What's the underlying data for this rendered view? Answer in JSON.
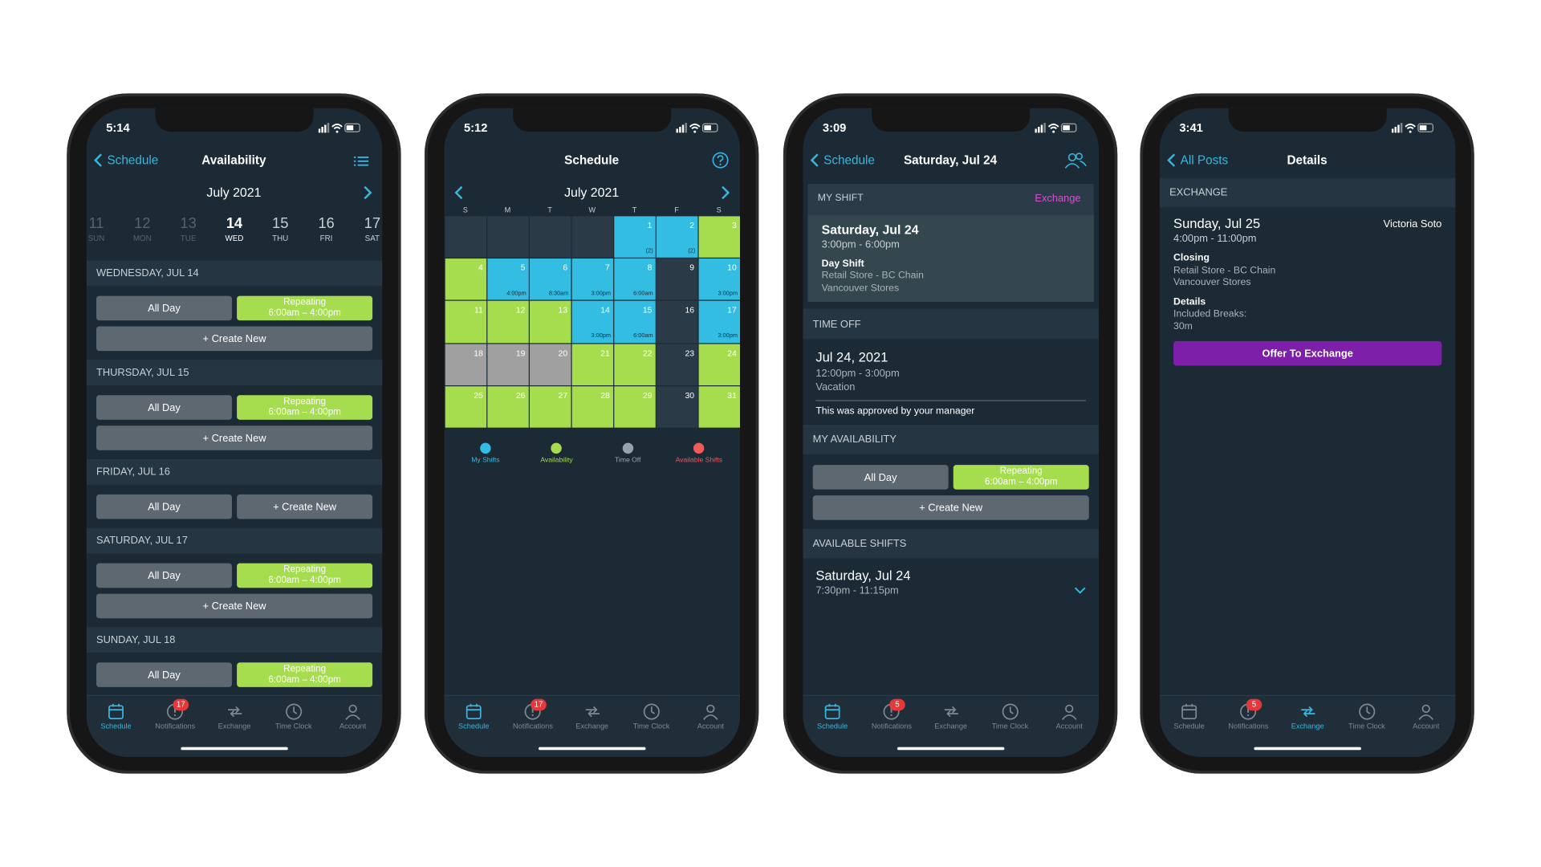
{
  "screens": [
    {
      "status_time": "5:14",
      "back": "Schedule",
      "title": "Availability",
      "month": "July 2021",
      "week": [
        {
          "day": 11,
          "label": "SUN"
        },
        {
          "day": 12,
          "label": "MON"
        },
        {
          "day": 13,
          "label": "TUE"
        },
        {
          "day": 14,
          "label": "WED"
        },
        {
          "day": 15,
          "label": "THU"
        },
        {
          "day": 16,
          "label": "FRI"
        },
        {
          "day": 17,
          "label": "SAT"
        }
      ],
      "sections": [
        {
          "header": "WEDNESDAY, JUL 14",
          "rows": [
            [
              "All Day",
              {
                "title": "Repeating",
                "time": "6:00am – 4:00pm"
              }
            ],
            [
              "+ Create New"
            ]
          ]
        },
        {
          "header": "THURSDAY, JUL 15",
          "rows": [
            [
              "All Day",
              {
                "title": "Repeating",
                "time": "6:00am – 4:00pm"
              }
            ],
            [
              "+ Create New"
            ]
          ]
        },
        {
          "header": "FRIDAY, JUL 16",
          "rows": [
            [
              "All Day",
              "+ Create New"
            ]
          ]
        },
        {
          "header": "SATURDAY, JUL 17",
          "rows": [
            [
              "All Day",
              {
                "title": "Repeating",
                "time": "6:00am – 4:00pm"
              }
            ],
            [
              "+ Create New"
            ]
          ]
        },
        {
          "header": "SUNDAY, JUL 18",
          "rows": [
            [
              "All Day",
              {
                "title": "Repeating",
                "time": "6:00am – 4:00pm"
              }
            ]
          ]
        }
      ],
      "tabs": [
        "Schedule",
        "Notifications",
        "Exchange",
        "Time Clock",
        "Account"
      ],
      "badge": 17,
      "active_tab": 0
    },
    {
      "status_time": "5:12",
      "title": "Schedule",
      "month": "July 2021",
      "weekdays": [
        "S",
        "M",
        "T",
        "W",
        "T",
        "F",
        "S"
      ],
      "calendar": [
        [
          {
            "day": null,
            "color": "#2a3a46"
          },
          {
            "day": null,
            "color": "#2a3a46"
          },
          {
            "day": null,
            "color": "#2a3a46"
          },
          {
            "day": null,
            "color": "#2a3a46"
          },
          {
            "day": 1,
            "note": "(2)",
            "color": "#33bde3"
          },
          {
            "day": 2,
            "note": "(2)",
            "color": "#33bde3"
          },
          {
            "day": 3,
            "color": "#a6dd4f"
          }
        ],
        [
          {
            "day": 4,
            "color": "#a6dd4f"
          },
          {
            "day": 5,
            "note": "4:00pm",
            "color": "#33bde3"
          },
          {
            "day": 6,
            "note": "8:30am",
            "color": "#33bde3"
          },
          {
            "day": 7,
            "note": "3:00pm",
            "color": "#33bde3"
          },
          {
            "day": 8,
            "note": "6:00am",
            "color": "#33bde3"
          },
          {
            "day": 9,
            "color": "#2a3a46"
          },
          {
            "day": 10,
            "note": "3:00pm",
            "color": "#33bde3"
          }
        ],
        [
          {
            "day": 11,
            "color": "#a6dd4f"
          },
          {
            "day": 12,
            "color": "#a6dd4f"
          },
          {
            "day": 13,
            "color": "#a6dd4f"
          },
          {
            "day": 14,
            "note": "3:00pm",
            "color": "#33bde3"
          },
          {
            "day": 15,
            "note": "6:00am",
            "color": "#33bde3"
          },
          {
            "day": 16,
            "color": "#2a3a46"
          },
          {
            "day": 17,
            "note": "3:00pm",
            "color": "#33bde3"
          }
        ],
        [
          {
            "day": 18,
            "color": "#a0a0a0"
          },
          {
            "day": 19,
            "color": "#a0a0a0"
          },
          {
            "day": 20,
            "color": "#a0a0a0"
          },
          {
            "day": 21,
            "color": "#a6dd4f"
          },
          {
            "day": 22,
            "color": "#a6dd4f"
          },
          {
            "day": 23,
            "color": "#2a3a46"
          },
          {
            "day": 24,
            "color": "#a6dd4f"
          }
        ],
        [
          {
            "day": 25,
            "color": "#a6dd4f"
          },
          {
            "day": 26,
            "color": "#a6dd4f"
          },
          {
            "day": 27,
            "color": "#a6dd4f"
          },
          {
            "day": 28,
            "color": "#a6dd4f"
          },
          {
            "day": 29,
            "color": "#a6dd4f"
          },
          {
            "day": 30,
            "color": "#2a3a46"
          },
          {
            "day": 31,
            "color": "#a6dd4f"
          }
        ]
      ],
      "legend": [
        {
          "label": "My Shifts",
          "color": "#33bde3"
        },
        {
          "label": "Availability",
          "color": "#a6dd4f"
        },
        {
          "label": "Time Off",
          "color": "#9aa3aa"
        },
        {
          "label": "Available Shifts",
          "color": "#ef5a5a"
        }
      ],
      "tabs": [
        "Schedule",
        "Notifications",
        "Exchange",
        "Time Clock",
        "Account"
      ],
      "badge": 17,
      "active_tab": 0
    },
    {
      "status_time": "3:09",
      "back": "Schedule",
      "title": "Saturday, Jul 24",
      "my_shift": {
        "header": "MY SHIFT",
        "action": "Exchange",
        "date": "Saturday, Jul 24",
        "time": "3:00pm - 6:00pm",
        "name": "Day Shift",
        "location": [
          "Retail Store - BC Chain",
          "Vancouver Stores"
        ]
      },
      "time_off": {
        "header": "TIME OFF",
        "date": "Jul 24, 2021",
        "time": "12:00pm - 3:00pm",
        "reason": "Vacation",
        "note": "This was approved by your manager"
      },
      "availability": {
        "header": "MY AVAILABILITY",
        "rows": [
          [
            "All Day",
            {
              "title": "Repeating",
              "time": "6:00am – 4:00pm"
            }
          ],
          [
            "+ Create New"
          ]
        ]
      },
      "available_shifts": {
        "header": "AVAILABLE SHIFTS",
        "date": "Saturday, Jul 24",
        "time": "7:30pm - 11:15pm"
      },
      "tabs": [
        "Schedule",
        "Notifications",
        "Exchange",
        "Time Clock",
        "Account"
      ],
      "badge": 5,
      "active_tab": 0
    },
    {
      "status_time": "3:41",
      "back": "All Posts",
      "title": "Details",
      "exchange": {
        "header": "EXCHANGE",
        "date": "Sunday, Jul 25",
        "person": "Victoria Soto",
        "time": "4:00pm - 11:00pm",
        "name": "Closing",
        "location": [
          "Retail Store - BC Chain",
          "Vancouver Stores"
        ],
        "details_label": "Details",
        "details": [
          "Included Breaks:",
          "30m"
        ],
        "button": "Offer To Exchange"
      },
      "tabs": [
        "Schedule",
        "Notifications",
        "Exchange",
        "Time Clock",
        "Account"
      ],
      "badge": 5,
      "active_tab": 2
    }
  ]
}
